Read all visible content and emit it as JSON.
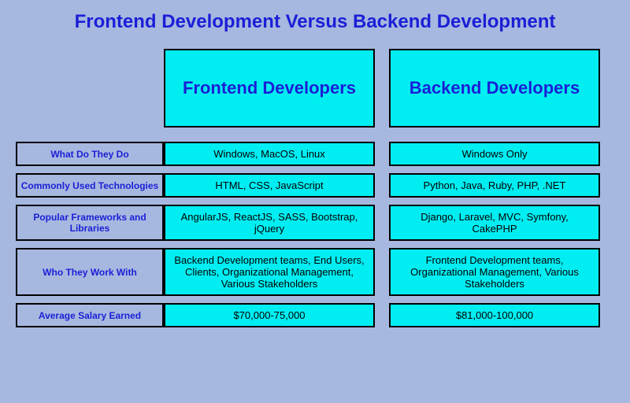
{
  "colors": {
    "page_bg": "#a7b8e0",
    "title_color": "#1b1fd6",
    "header_bg": "#00eef2",
    "header_text": "#1b1fd6",
    "label_bg": "#a7b8e0",
    "label_text": "#1b1fd6",
    "cell_bg": "#00eef2"
  },
  "title": "Frontend Development Versus Backend Development",
  "columns": {
    "a": "Frontend Developers",
    "b": "Backend Developers"
  },
  "rows": [
    {
      "label": "What Do They Do",
      "a": "Windows, MacOS, Linux",
      "b": "Windows Only"
    },
    {
      "label": "Commonly Used Technologies",
      "a": "HTML, CSS, JavaScript",
      "b": "Python, Java, Ruby, PHP, .NET"
    },
    {
      "label": "Popular Frameworks and Libraries",
      "a": "AngularJS, ReactJS, SASS, Bootstrap, jQuery",
      "b": "Django, Laravel, MVC, Symfony, CakePHP"
    },
    {
      "label": "Who They Work With",
      "a": "Backend Development teams, End Users, Clients, Organizational Management, Various Stakeholders",
      "b": "Frontend Development teams, Organizational Management, Various Stakeholders"
    },
    {
      "label": "Average Salary Earned",
      "a": "$70,000-75,000",
      "b": "$81,000-100,000"
    }
  ]
}
